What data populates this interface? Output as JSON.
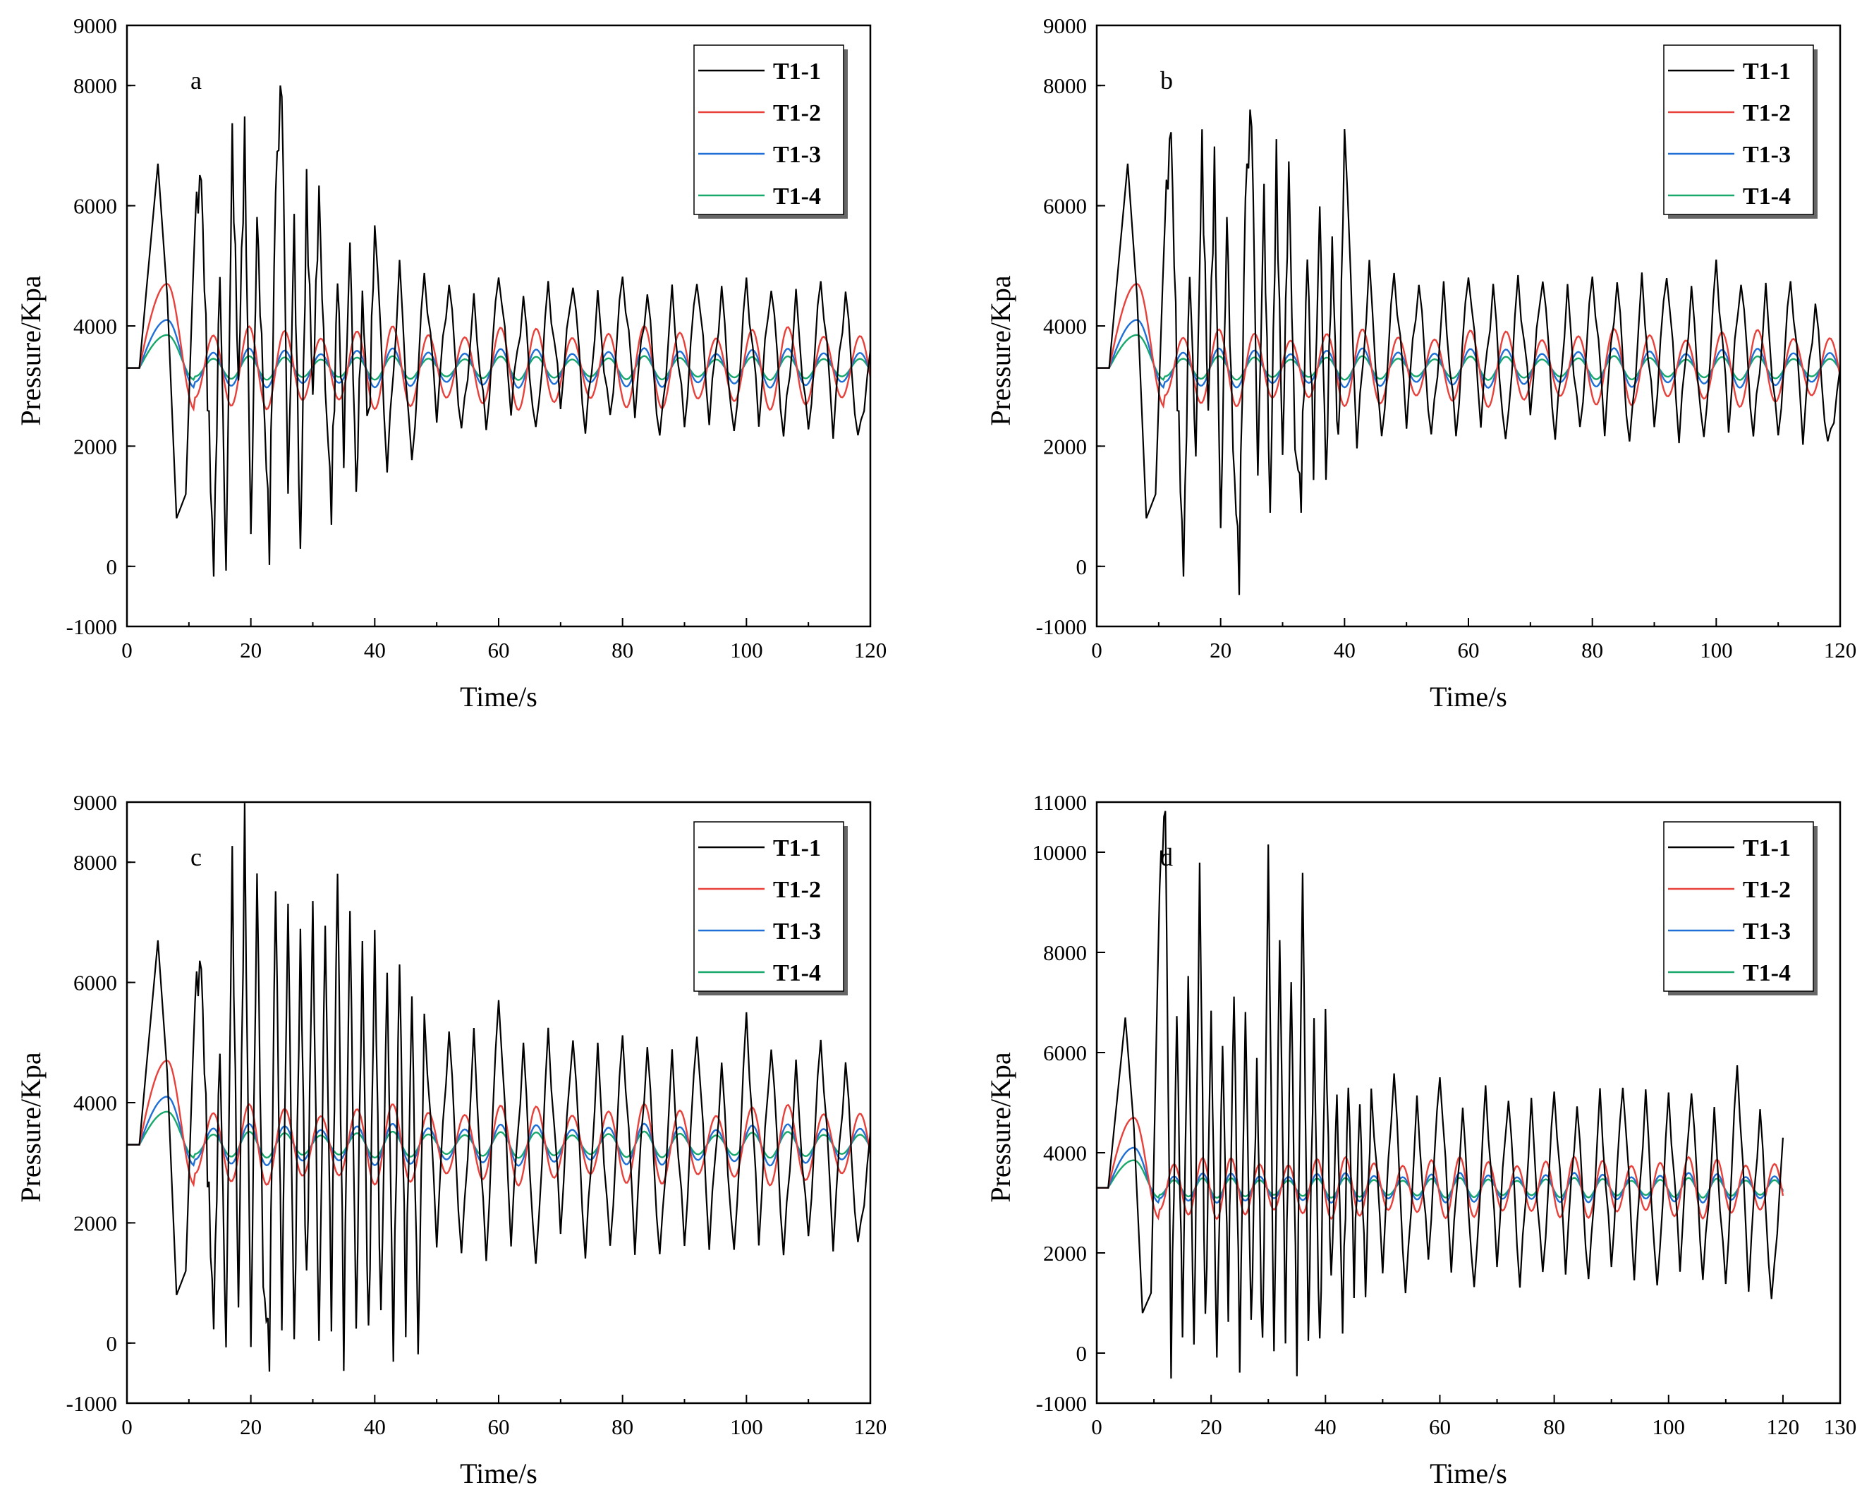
{
  "chart_data": [
    {
      "type": "line",
      "panel_label": "a",
      "xlabel": "Time/s",
      "ylabel": "Pressure/Kpa",
      "xlim": [
        0,
        120
      ],
      "ylim": [
        -1000,
        9000
      ],
      "xticks": [
        0,
        20,
        40,
        60,
        80,
        100,
        120
      ],
      "yticks": [
        -1000,
        0,
        2000,
        4000,
        6000,
        8000,
        9000
      ],
      "legend": "top-right",
      "series": [
        {
          "name": "T1-1",
          "color": "#000000",
          "x": [
            0,
            2,
            3.5,
            5,
            6.5,
            8,
            9.5,
            11,
            12,
            13,
            14,
            15,
            16,
            17,
            18,
            19,
            20,
            21,
            22,
            23,
            24,
            25,
            26,
            27,
            28,
            29,
            30,
            31,
            32,
            33,
            34,
            35,
            36,
            37,
            38,
            39,
            40,
            42,
            44,
            46,
            48,
            50,
            52,
            54,
            56,
            58,
            60,
            62,
            64,
            66,
            68,
            70,
            72,
            74,
            76,
            78,
            80,
            82,
            84,
            86,
            88,
            90,
            92,
            94,
            96,
            98,
            100,
            102,
            104,
            106,
            108,
            110,
            112,
            114,
            116,
            118,
            120
          ],
          "y": [
            3300,
            3300,
            5000,
            6700,
            4500,
            800,
            1200,
            5800,
            6500,
            3000,
            -100,
            5000,
            -100,
            7100,
            3000,
            7100,
            500,
            5800,
            3000,
            400,
            6300,
            8100,
            1200,
            5700,
            200,
            6200,
            2800,
            6200,
            3000,
            1000,
            4800,
            2000,
            5400,
            1200,
            4500,
            2200,
            5600,
            1600,
            5200,
            1800,
            4800,
            2300,
            4700,
            2400,
            4600,
            2200,
            4700,
            2500,
            4600,
            2400,
            4700,
            2500,
            4600,
            2300,
            4700,
            2500,
            4700,
            2400,
            4600,
            2300,
            4700,
            2200,
            4600,
            2400,
            4800,
            2300,
            4700,
            2200,
            4600,
            2300,
            4700,
            2200,
            4600,
            2100,
            4700,
            2300,
            3600
          ]
        },
        {
          "name": "T1-2",
          "color": "#e8403a",
          "amp": 700,
          "period": 5.8,
          "peak": 4700
        },
        {
          "name": "T1-3",
          "color": "#1f6fd6",
          "amp": 330,
          "period": 5.8,
          "peak": 4100
        },
        {
          "name": "T1-4",
          "color": "#18a86c",
          "amp": 200,
          "period": 5.8,
          "peak": 3850
        }
      ]
    },
    {
      "type": "line",
      "panel_label": "b",
      "xlabel": "Time/s",
      "ylabel": "Pressure/Kpa",
      "xlim": [
        0,
        120
      ],
      "ylim": [
        -1000,
        9000
      ],
      "xticks": [
        0,
        20,
        40,
        60,
        80,
        100,
        120
      ],
      "yticks": [
        -1000,
        0,
        2000,
        4000,
        6000,
        8000,
        9000
      ],
      "legend": "top-right",
      "series": [
        {
          "name": "T1-1",
          "color": "#000000",
          "x": [
            0,
            2,
            3.5,
            5,
            6.5,
            8,
            9.5,
            11,
            12,
            13,
            14,
            15,
            16,
            17,
            18,
            19,
            20,
            21,
            22,
            23,
            24,
            25,
            26,
            27,
            28,
            29,
            30,
            31,
            32,
            33,
            34,
            35,
            36,
            37,
            38,
            39,
            40,
            42,
            44,
            46,
            48,
            50,
            52,
            54,
            56,
            58,
            60,
            62,
            64,
            66,
            68,
            70,
            72,
            74,
            76,
            78,
            80,
            82,
            84,
            86,
            88,
            90,
            92,
            94,
            96,
            98,
            100,
            102,
            104,
            106,
            108,
            110,
            112,
            114,
            116,
            118,
            120
          ],
          "y": [
            3300,
            3300,
            5000,
            6700,
            4500,
            800,
            1200,
            5800,
            7300,
            3000,
            -100,
            5000,
            1800,
            7000,
            2500,
            6600,
            600,
            5800,
            2000,
            -100,
            6200,
            7600,
            1500,
            6200,
            800,
            6700,
            1800,
            6600,
            2000,
            1200,
            5200,
            1800,
            6000,
            1400,
            5400,
            1800,
            7200,
            2000,
            5200,
            2200,
            4800,
            2200,
            4700,
            2300,
            4800,
            2100,
            4700,
            2300,
            4800,
            2200,
            4800,
            2400,
            4700,
            2200,
            4800,
            2300,
            4700,
            2100,
            4800,
            2200,
            4900,
            2200,
            4700,
            2100,
            4800,
            2200,
            5000,
            2100,
            4700,
            2300,
            4800,
            2100,
            4600,
            2000,
            4500,
            2200,
            3300
          ]
        },
        {
          "name": "T1-2",
          "color": "#e8403a",
          "amp": 650,
          "period": 5.8,
          "peak": 4700
        },
        {
          "name": "T1-3",
          "color": "#1f6fd6",
          "amp": 330,
          "period": 5.8,
          "peak": 4100
        },
        {
          "name": "T1-4",
          "color": "#18a86c",
          "amp": 200,
          "period": 5.8,
          "peak": 3850
        }
      ]
    },
    {
      "type": "line",
      "panel_label": "c",
      "xlabel": "Time/s",
      "ylabel": "Pressure/Kpa",
      "xlim": [
        0,
        120
      ],
      "ylim": [
        -1000,
        9000
      ],
      "xticks": [
        0,
        20,
        40,
        60,
        80,
        100,
        120
      ],
      "yticks": [
        -1000,
        0,
        2000,
        4000,
        6000,
        8000,
        9000
      ],
      "legend": "top-right",
      "series": [
        {
          "name": "T1-1",
          "color": "#000000",
          "x": [
            0,
            2,
            3.5,
            5,
            6.5,
            8,
            9.5,
            11,
            12,
            13,
            14,
            15,
            16,
            17,
            18,
            19,
            20,
            21,
            22,
            23,
            24,
            25,
            26,
            27,
            28,
            29,
            30,
            31,
            32,
            33,
            34,
            35,
            36,
            37,
            38,
            39,
            40,
            41,
            42,
            43,
            44,
            45,
            46,
            47,
            48,
            50,
            52,
            54,
            56,
            58,
            60,
            62,
            64,
            66,
            68,
            70,
            72,
            74,
            76,
            78,
            80,
            82,
            84,
            86,
            88,
            90,
            92,
            94,
            96,
            98,
            100,
            102,
            104,
            106,
            108,
            110,
            112,
            114,
            116,
            118,
            120
          ],
          "y": [
            3300,
            3300,
            5000,
            6700,
            4500,
            800,
            1200,
            5800,
            6300,
            3000,
            300,
            5000,
            -100,
            8000,
            500,
            8600,
            -100,
            7800,
            1000,
            -100,
            7600,
            500,
            7300,
            -100,
            6800,
            800,
            7300,
            -100,
            7000,
            500,
            7900,
            -100,
            7200,
            200,
            6600,
            -100,
            6800,
            300,
            6200,
            -100,
            6400,
            500,
            5800,
            -100,
            5400,
            1500,
            5200,
            1600,
            5300,
            1300,
            5600,
            1600,
            5100,
            1400,
            5200,
            1700,
            5000,
            1500,
            5100,
            1600,
            5000,
            1400,
            5000,
            1600,
            4900,
            1500,
            5000,
            1600,
            4800,
            1600,
            5400,
            1500,
            4900,
            1600,
            4800,
            1700,
            4900,
            1500,
            4800,
            1800,
            3500
          ]
        },
        {
          "name": "T1-2",
          "color": "#e8403a",
          "amp": 680,
          "period": 5.8,
          "peak": 4700
        },
        {
          "name": "T1-3",
          "color": "#1f6fd6",
          "amp": 350,
          "period": 5.8,
          "peak": 4100
        },
        {
          "name": "T1-4",
          "color": "#18a86c",
          "amp": 220,
          "period": 5.8,
          "peak": 3850
        }
      ]
    },
    {
      "type": "line",
      "panel_label": "d",
      "xlabel": "Time/s",
      "ylabel": "Pressure/Kpa",
      "xlim": [
        0,
        130
      ],
      "ylim": [
        -1000,
        11000
      ],
      "xticks": [
        0,
        20,
        40,
        60,
        80,
        100,
        120,
        130
      ],
      "yticks": [
        -1000,
        0,
        2000,
        4000,
        6000,
        8000,
        10000,
        11000
      ],
      "legend": "top-right",
      "series": [
        {
          "name": "T1-1",
          "color": "#000000",
          "x": [
            0,
            2,
            3.5,
            5,
            6.5,
            8,
            9.5,
            11,
            12,
            13,
            14,
            15,
            16,
            17,
            18,
            19,
            20,
            21,
            22,
            23,
            24,
            25,
            26,
            27,
            28,
            29,
            30,
            31,
            32,
            33,
            34,
            35,
            36,
            37,
            38,
            39,
            40,
            41,
            42,
            43,
            44,
            45,
            46,
            47,
            48,
            50,
            52,
            54,
            56,
            58,
            60,
            62,
            64,
            66,
            68,
            70,
            72,
            74,
            76,
            78,
            80,
            82,
            84,
            86,
            88,
            90,
            92,
            94,
            96,
            98,
            100,
            102,
            104,
            106,
            108,
            110,
            112,
            114,
            116,
            118,
            120
          ],
          "y": [
            3300,
            3300,
            5000,
            6700,
            4500,
            800,
            1200,
            9400,
            10900,
            -100,
            6800,
            500,
            7500,
            -100,
            9700,
            400,
            6800,
            -100,
            6200,
            1000,
            7200,
            -100,
            6800,
            500,
            5800,
            -100,
            10100,
            -100,
            8300,
            500,
            7500,
            -100,
            9600,
            200,
            6600,
            -100,
            6800,
            1300,
            5200,
            600,
            5400,
            1500,
            5000,
            1200,
            5200,
            1500,
            5600,
            1300,
            5200,
            1800,
            5400,
            1600,
            5000,
            1400,
            5300,
            1600,
            5000,
            1400,
            5200,
            1600,
            5100,
            1500,
            5000,
            1600,
            5300,
            1600,
            5200,
            1500,
            5400,
            1400,
            5100,
            1500,
            5200,
            1600,
            5000,
            1300,
            5600,
            1200,
            5000,
            1200,
            4300
          ]
        },
        {
          "name": "T1-2",
          "color": "#e8403a",
          "amp": 620,
          "period": 5.0,
          "peak": 4700
        },
        {
          "name": "T1-3",
          "color": "#1f6fd6",
          "amp": 300,
          "period": 5.0,
          "peak": 4100
        },
        {
          "name": "T1-4",
          "color": "#18a86c",
          "amp": 200,
          "period": 5.0,
          "peak": 3850
        }
      ]
    }
  ]
}
